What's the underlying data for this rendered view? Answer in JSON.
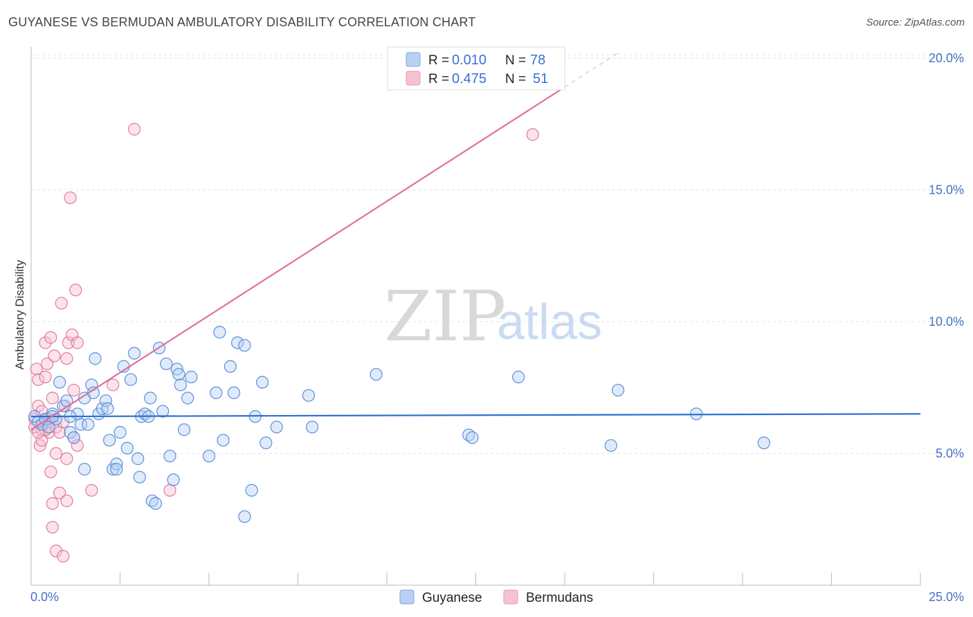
{
  "title": "GUYANESE VS BERMUDAN AMBULATORY DISABILITY CORRELATION CHART",
  "source": "Source: ZipAtlas.com",
  "watermark": {
    "zip": "ZIP",
    "atlas": "atlas"
  },
  "colors": {
    "blue": "#5b8fd9",
    "blue_fill": "#b9d0f3",
    "blue_line": "#2f6fcf",
    "pink": "#e07aa0",
    "pink_fill": "#f6c1d3",
    "pink_line": "#e0709a",
    "tick": "#4472c4"
  },
  "chart_data": {
    "type": "scatter",
    "title": "GUYANESE VS BERMUDAN AMBULATORY DISABILITY CORRELATION CHART",
    "xlabel": "",
    "ylabel": "Ambulatory Disability",
    "xlim": [
      0,
      25
    ],
    "ylim": [
      0,
      20
    ],
    "x_tick_labels": [
      "0.0%",
      "25.0%"
    ],
    "y_ticks": [
      5,
      10,
      15,
      20
    ],
    "y_tick_labels": [
      "5.0%",
      "10.0%",
      "15.0%",
      "20.0%"
    ],
    "grid": true,
    "legend_position": "top-center",
    "legend": [
      {
        "name": "Guyanese",
        "r_label": "R =",
        "r": "0.010",
        "n_label": "N =",
        "n": "78"
      },
      {
        "name": "Bermudans",
        "r_label": "R =",
        "r": "0.475",
        "n_label": "N =",
        "n": "51"
      }
    ],
    "series": [
      {
        "name": "Guyanese",
        "trend": {
          "x0": 0,
          "y0": 6.4,
          "x1": 25,
          "y1": 6.5
        },
        "points": [
          [
            0.1,
            6.4
          ],
          [
            0.2,
            6.2
          ],
          [
            0.3,
            6.1
          ],
          [
            0.4,
            6.3
          ],
          [
            0.5,
            6.0
          ],
          [
            0.6,
            6.5
          ],
          [
            0.7,
            6.3
          ],
          [
            0.8,
            7.7
          ],
          [
            0.9,
            6.8
          ],
          [
            1.0,
            7.0
          ],
          [
            1.1,
            5.8
          ],
          [
            1.2,
            5.6
          ],
          [
            1.3,
            6.5
          ],
          [
            1.4,
            6.1
          ],
          [
            1.5,
            7.1
          ],
          [
            1.6,
            6.1
          ],
          [
            1.7,
            7.6
          ],
          [
            1.75,
            7.3
          ],
          [
            1.8,
            8.6
          ],
          [
            1.9,
            6.5
          ],
          [
            2.0,
            6.7
          ],
          [
            2.1,
            7.0
          ],
          [
            2.15,
            6.7
          ],
          [
            2.2,
            5.5
          ],
          [
            2.3,
            4.4
          ],
          [
            2.4,
            4.6
          ],
          [
            2.5,
            5.8
          ],
          [
            2.6,
            8.3
          ],
          [
            2.7,
            5.2
          ],
          [
            2.8,
            7.8
          ],
          [
            2.9,
            8.8
          ],
          [
            3.0,
            4.8
          ],
          [
            3.05,
            4.1
          ],
          [
            3.1,
            6.4
          ],
          [
            3.2,
            6.5
          ],
          [
            3.3,
            6.4
          ],
          [
            3.35,
            7.1
          ],
          [
            3.4,
            3.2
          ],
          [
            3.5,
            3.1
          ],
          [
            3.6,
            9.0
          ],
          [
            3.7,
            6.6
          ],
          [
            3.8,
            8.4
          ],
          [
            3.9,
            4.9
          ],
          [
            4.0,
            4.0
          ],
          [
            4.1,
            8.2
          ],
          [
            4.15,
            8.0
          ],
          [
            4.2,
            7.6
          ],
          [
            4.3,
            5.9
          ],
          [
            4.4,
            7.1
          ],
          [
            4.5,
            7.9
          ],
          [
            5.0,
            4.9
          ],
          [
            5.2,
            7.3
          ],
          [
            5.3,
            9.6
          ],
          [
            5.4,
            5.5
          ],
          [
            5.6,
            8.3
          ],
          [
            5.7,
            7.3
          ],
          [
            5.8,
            9.2
          ],
          [
            6.0,
            9.1
          ],
          [
            6.2,
            3.6
          ],
          [
            6.3,
            6.4
          ],
          [
            6.0,
            2.6
          ],
          [
            6.5,
            7.7
          ],
          [
            6.6,
            5.4
          ],
          [
            6.9,
            6.0
          ],
          [
            7.8,
            7.2
          ],
          [
            7.9,
            6.0
          ],
          [
            9.7,
            8.0
          ],
          [
            12.3,
            5.7
          ],
          [
            12.4,
            5.6
          ],
          [
            13.7,
            7.9
          ],
          [
            16.3,
            5.3
          ],
          [
            16.5,
            7.4
          ],
          [
            18.7,
            6.5
          ],
          [
            20.6,
            5.4
          ],
          [
            1.5,
            4.4
          ],
          [
            2.4,
            4.4
          ],
          [
            1.1,
            6.4
          ],
          [
            0.6,
            6.4
          ]
        ]
      },
      {
        "name": "Bermudans",
        "trend": {
          "x0": 0,
          "y0": 5.9,
          "x1": 15,
          "y1": 18.9,
          "dash_x1": 16.5,
          "dash_y1": 20.2
        },
        "points": [
          [
            0.1,
            6.3
          ],
          [
            0.1,
            6.0
          ],
          [
            0.15,
            8.2
          ],
          [
            0.2,
            7.8
          ],
          [
            0.2,
            6.8
          ],
          [
            0.25,
            5.3
          ],
          [
            0.3,
            6.6
          ],
          [
            0.3,
            5.9
          ],
          [
            0.35,
            6.1
          ],
          [
            0.4,
            9.2
          ],
          [
            0.4,
            7.9
          ],
          [
            0.45,
            8.4
          ],
          [
            0.5,
            6.3
          ],
          [
            0.5,
            5.8
          ],
          [
            0.55,
            9.4
          ],
          [
            0.55,
            4.3
          ],
          [
            0.6,
            7.1
          ],
          [
            0.6,
            3.1
          ],
          [
            0.6,
            2.2
          ],
          [
            0.65,
            8.7
          ],
          [
            0.7,
            6.0
          ],
          [
            0.7,
            5.0
          ],
          [
            0.7,
            1.3
          ],
          [
            0.8,
            5.8
          ],
          [
            0.8,
            3.5
          ],
          [
            0.85,
            10.7
          ],
          [
            0.9,
            1.1
          ],
          [
            0.9,
            6.2
          ],
          [
            0.95,
            6.8
          ],
          [
            1.0,
            4.8
          ],
          [
            1.0,
            3.2
          ],
          [
            1.0,
            8.6
          ],
          [
            1.05,
            9.2
          ],
          [
            1.1,
            14.7
          ],
          [
            1.15,
            9.5
          ],
          [
            1.2,
            7.4
          ],
          [
            1.2,
            5.6
          ],
          [
            1.25,
            11.2
          ],
          [
            1.3,
            9.2
          ],
          [
            1.3,
            5.3
          ],
          [
            1.7,
            3.6
          ],
          [
            2.3,
            7.6
          ],
          [
            2.9,
            17.3
          ],
          [
            3.9,
            3.6
          ],
          [
            14.1,
            17.1
          ],
          [
            0.3,
            6.1
          ],
          [
            0.4,
            5.9
          ],
          [
            0.5,
            6.2
          ],
          [
            0.3,
            5.5
          ],
          [
            0.2,
            5.8
          ],
          [
            0.45,
            6.3
          ]
        ]
      }
    ]
  }
}
